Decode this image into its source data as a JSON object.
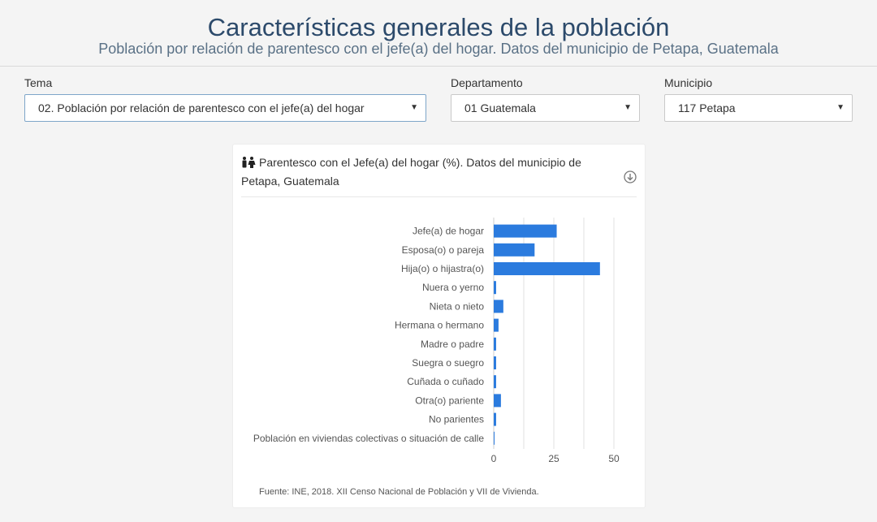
{
  "header": {
    "title": "Características generales de la población",
    "subtitle": "Población por relación de parentesco con el jefe(a) del hogar. Datos del municipio de Petapa, Guatemala"
  },
  "filters": {
    "tema": {
      "label": "Tema",
      "value": "02. Población por relación de parentesco con el jefe(a) del hogar"
    },
    "departamento": {
      "label": "Departamento",
      "value": "01 Guatemala"
    },
    "municipio": {
      "label": "Municipio",
      "value": "117 Petapa"
    }
  },
  "card": {
    "title": "Parentesco con el Jefe(a) del hogar (%). Datos del municipio de Petapa, Guatemala",
    "icon": "people-icon",
    "download_icon": "download-icon",
    "source": "Fuente: INE, 2018. XII Censo Nacional de Población y VII de Vivienda."
  },
  "chart_data": {
    "type": "bar",
    "orientation": "horizontal",
    "categories": [
      "Jefe(a) de hogar",
      "Esposa(o) o pareja",
      "Hija(o) o hijastra(o)",
      "Nuera o yerno",
      "Nieta o nieto",
      "Hermana o hermano",
      "Madre o padre",
      "Suegra o suegro",
      "Cuñada o cuñado",
      "Otra(o) pariente",
      "No parientes",
      "Población en viviendas colectivas o situación de calle"
    ],
    "values": [
      26.2,
      17.0,
      44.2,
      1.0,
      4.0,
      2.0,
      1.0,
      1.0,
      1.0,
      3.0,
      1.0,
      0.2
    ],
    "xticks": [
      0,
      25,
      50
    ],
    "xlim": [
      0,
      50
    ],
    "grid": true,
    "bar_color": "#2b7bde"
  }
}
